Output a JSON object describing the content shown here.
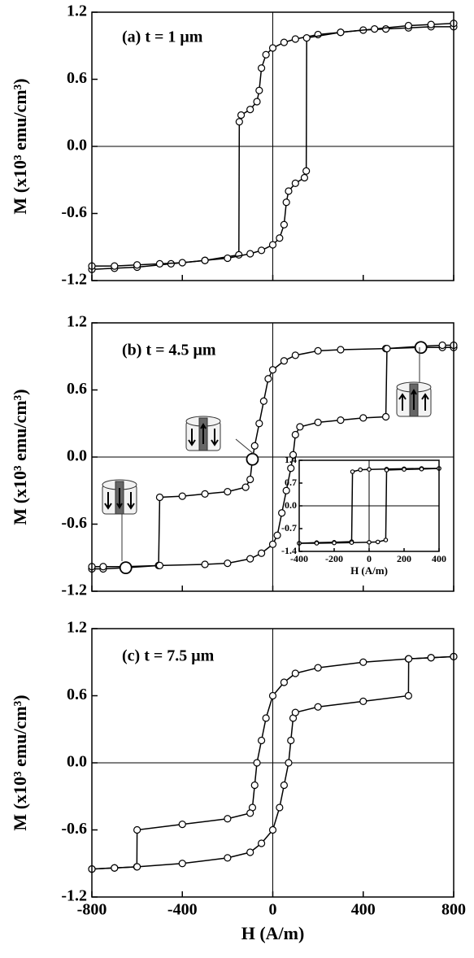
{
  "chart_data": [
    {
      "type": "line",
      "title": "(a) t = 1 μm",
      "ylabel": "M (x10³ emu/cm³)",
      "xlim": [
        -800,
        800
      ],
      "ylim": [
        -1.2,
        1.2
      ],
      "xticks": [
        -800,
        -400,
        0,
        400,
        800
      ],
      "yticks": [
        1.2,
        0.6,
        {
          "value": 0,
          "label": "0.0"
        },
        -0.6,
        -1.2
      ],
      "zero_lines": true,
      "color": "#000000",
      "series": [
        {
          "x": [
            800,
            700,
            600,
            500,
            400,
            300,
            200,
            100,
            50,
            0,
            -30,
            -50,
            -60,
            -70,
            -100,
            -140,
            -148,
            -150,
            -300,
            -450,
            -600,
            -700,
            -800
          ],
          "values": [
            1.07,
            1.07,
            1.06,
            1.05,
            1.04,
            1.02,
            1.0,
            0.96,
            0.93,
            0.88,
            0.82,
            0.7,
            0.5,
            0.4,
            0.33,
            0.28,
            0.22,
            -0.97,
            -1.02,
            -1.05,
            -1.08,
            -1.09,
            -1.1
          ]
        },
        {
          "x": [
            -800,
            -700,
            -600,
            -500,
            -400,
            -300,
            -200,
            -100,
            -50,
            0,
            30,
            50,
            60,
            70,
            100,
            140,
            148,
            150,
            300,
            450,
            600,
            700,
            800
          ],
          "values": [
            -1.07,
            -1.07,
            -1.06,
            -1.05,
            -1.04,
            -1.02,
            -1.0,
            -0.96,
            -0.93,
            -0.88,
            -0.82,
            -0.7,
            -0.5,
            -0.4,
            -0.33,
            -0.28,
            -0.22,
            0.97,
            1.02,
            1.05,
            1.08,
            1.09,
            1.1
          ]
        }
      ]
    },
    {
      "type": "line",
      "title": "(b) t = 4.5 μm",
      "ylabel": "M (x10³ emu/cm³)",
      "xlim": [
        -800,
        800
      ],
      "ylim": [
        -1.2,
        1.2
      ],
      "xticks": [
        -800,
        -400,
        0,
        400,
        800
      ],
      "yticks": [
        1.2,
        0.6,
        {
          "value": 0,
          "label": "0.0"
        },
        -0.6,
        -1.2
      ],
      "zero_lines": true,
      "color": "#000000",
      "series": [
        {
          "x": [
            800,
            750,
            650,
            500,
            300,
            200,
            100,
            50,
            0,
            -20,
            -40,
            -60,
            -80,
            -90,
            -100,
            -120,
            -200,
            -300,
            -400,
            -500,
            -505,
            -650,
            -750,
            -800
          ],
          "values": [
            0.98,
            0.98,
            0.98,
            0.97,
            0.96,
            0.95,
            0.91,
            0.86,
            0.78,
            0.7,
            0.5,
            0.3,
            0.1,
            -0.02,
            -0.2,
            -0.27,
            -0.31,
            -0.33,
            -0.35,
            -0.36,
            -0.97,
            -0.99,
            -1.0,
            -1.0
          ]
        },
        {
          "x": [
            -800,
            -750,
            -650,
            -500,
            -300,
            -200,
            -100,
            -50,
            0,
            20,
            40,
            60,
            80,
            90,
            100,
            120,
            200,
            300,
            400,
            500,
            505,
            650,
            750,
            800
          ],
          "values": [
            -0.98,
            -0.98,
            -0.98,
            -0.97,
            -0.96,
            -0.95,
            -0.91,
            -0.86,
            -0.78,
            -0.7,
            -0.5,
            -0.3,
            -0.1,
            0.02,
            0.2,
            0.27,
            0.31,
            0.33,
            0.35,
            0.36,
            0.97,
            0.99,
            1.0,
            1.0
          ]
        }
      ],
      "markers": {
        "x": [
          -650,
          -90,
          655
        ],
        "values": [
          -0.99,
          -0.02,
          0.98
        ]
      }
    },
    {
      "type": "line",
      "title": "(c) t = 7.5 μm",
      "ylabel": "M (x10³ emu/cm³)",
      "xlabel": "H (A/m)",
      "xlim": [
        -800,
        800
      ],
      "ylim": [
        -1.2,
        1.2
      ],
      "xticks": [
        -800,
        -400,
        0,
        400,
        800
      ],
      "yticks": [
        1.2,
        0.6,
        {
          "value": 0,
          "label": "0.0"
        },
        -0.6,
        -1.2
      ],
      "zero_lines": true,
      "color": "#000000",
      "series": [
        {
          "x": [
            800,
            700,
            600,
            400,
            200,
            100,
            50,
            0,
            -30,
            -50,
            -70,
            -80,
            -90,
            -100,
            -200,
            -400,
            -600,
            -601,
            -700,
            -800
          ],
          "values": [
            0.95,
            0.94,
            0.93,
            0.9,
            0.85,
            0.8,
            0.72,
            0.6,
            0.4,
            0.2,
            0,
            -0.2,
            -0.4,
            -0.45,
            -0.5,
            -0.55,
            -0.6,
            -0.93,
            -0.94,
            -0.95
          ]
        },
        {
          "x": [
            -800,
            -700,
            -600,
            -400,
            -200,
            -100,
            -50,
            0,
            30,
            50,
            70,
            80,
            90,
            100,
            200,
            400,
            600,
            601,
            700,
            800
          ],
          "values": [
            -0.95,
            -0.94,
            -0.93,
            -0.9,
            -0.85,
            -0.8,
            -0.72,
            -0.6,
            -0.4,
            -0.2,
            0,
            0.2,
            0.4,
            0.45,
            0.5,
            0.55,
            0.6,
            0.93,
            0.94,
            0.95
          ]
        }
      ]
    },
    {
      "type": "line",
      "xlabel": "H (A/m)",
      "xlim": [
        -400,
        400
      ],
      "ylim": [
        -1.4,
        1.4
      ],
      "xticks": [
        -400,
        -200,
        0,
        200,
        400
      ],
      "yticks": [
        1.4,
        0.7,
        {
          "value": 0,
          "label": "0.0"
        },
        -0.7,
        -1.4
      ],
      "zero_lines": true,
      "color": "#000000",
      "series": [
        {
          "x": [
            400,
            300,
            200,
            100,
            0,
            -50,
            -95,
            -100,
            -200,
            -300,
            -400
          ],
          "values": [
            1.15,
            1.15,
            1.14,
            1.13,
            1.12,
            1.11,
            1.05,
            -1.1,
            -1.12,
            -1.13,
            -1.15
          ]
        },
        {
          "x": [
            -400,
            -300,
            -200,
            -100,
            0,
            50,
            95,
            100,
            200,
            300,
            400
          ],
          "values": [
            -1.15,
            -1.15,
            -1.14,
            -1.13,
            -1.12,
            -1.11,
            -1.05,
            1.1,
            1.12,
            1.13,
            1.15
          ]
        }
      ]
    }
  ]
}
